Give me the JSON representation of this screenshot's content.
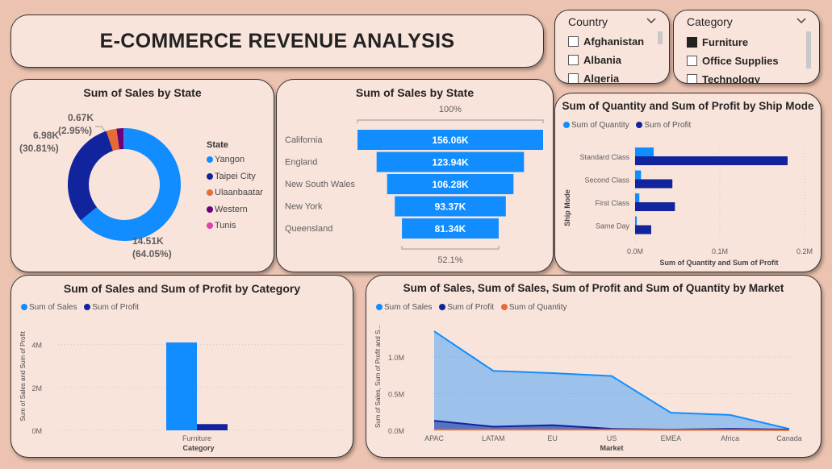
{
  "header": {
    "title": "E-COMMERCE REVENUE ANALYSIS"
  },
  "slicers": {
    "country": {
      "title": "Country",
      "items": [
        {
          "label": "Afghanistan",
          "checked": false
        },
        {
          "label": "Albania",
          "checked": false
        },
        {
          "label": "Algeria",
          "checked": false
        }
      ]
    },
    "category": {
      "title": "Category",
      "items": [
        {
          "label": "Furniture",
          "checked": true
        },
        {
          "label": "Office Supplies",
          "checked": false
        },
        {
          "label": "Technology",
          "checked": false
        }
      ]
    }
  },
  "colors": {
    "blue": "#118dff",
    "navy": "#12239e",
    "orange": "#e66c37",
    "purple": "#6b007b",
    "pink": "#e044a7",
    "card": "#f9e4dc",
    "background": "#ecc3b0"
  },
  "donut": {
    "title": "Sum of Sales by State",
    "legend_title": "State",
    "chart_data": {
      "type": "pie",
      "categories": [
        "Yangon",
        "Taipei City",
        "Ulaanbaatar",
        "Western",
        "Tunis"
      ],
      "values": [
        14.51,
        6.98,
        0.67,
        0.45,
        0.05
      ],
      "unit": "K",
      "colors": [
        "#118dff",
        "#12239e",
        "#e66c37",
        "#6b007b",
        "#e044a7"
      ],
      "data_labels": [
        {
          "value": "14.51K",
          "pct": "(64.05%)"
        },
        {
          "value": "6.98K",
          "pct": "(30.81%)"
        },
        {
          "value": "0.67K",
          "pct": "(2.95%)"
        }
      ]
    }
  },
  "funnel": {
    "title": "Sum of Sales by State",
    "top_pct": "100%",
    "bottom_pct": "52.1%",
    "chart_data": {
      "type": "bar",
      "categories": [
        "California",
        "England",
        "New South Wales",
        "New York",
        "Queensland"
      ],
      "values": [
        156.06,
        123.94,
        106.28,
        93.37,
        81.34
      ],
      "labels": [
        "156.06K",
        "123.94K",
        "106.28K",
        "93.37K",
        "81.34K"
      ]
    }
  },
  "shipmode": {
    "title": "Sum of Quantity and Sum of Profit by Ship Mode",
    "legend": [
      "Sum of Quantity",
      "Sum of Profit"
    ],
    "ylabel": "Ship Mode",
    "xlabel": "Sum of Quantity and Sum of Profit",
    "xticks": [
      "0.0M",
      "0.1M",
      "0.2M"
    ],
    "chart_data": {
      "type": "bar",
      "categories": [
        "Standard Class",
        "Second Class",
        "First Class",
        "Same Day"
      ],
      "series": [
        {
          "name": "Sum of Quantity",
          "values": [
            0.022,
            0.007,
            0.005,
            0.002
          ]
        },
        {
          "name": "Sum of Profit",
          "values": [
            0.18,
            0.044,
            0.047,
            0.019
          ]
        }
      ],
      "xlim": [
        0,
        0.2
      ]
    }
  },
  "category_chart": {
    "title": "Sum of Sales and Sum of Profit by Category",
    "legend": [
      "Sum of Sales",
      "Sum of Profit"
    ],
    "ylabel": "Sum of Sales and Sum of Profit",
    "xlabel": "Category",
    "yticks": [
      "0M",
      "2M",
      "4M"
    ],
    "chart_data": {
      "type": "bar",
      "categories": [
        "Furniture"
      ],
      "series": [
        {
          "name": "Sum of Sales",
          "values": [
            4.1
          ]
        },
        {
          "name": "Sum of Profit",
          "values": [
            0.29
          ]
        }
      ],
      "ylim": [
        0,
        4.7
      ]
    }
  },
  "market": {
    "title": "Sum of Sales, Sum of Sales, Sum of Profit and Sum of Quantity by Market",
    "legend": [
      "Sum of Sales",
      "Sum of Profit",
      "Sum of Quantity"
    ],
    "ylabel": "Sum of Sales, Sum of Profit and S...",
    "xlabel": "Market",
    "yticks": [
      "0.0M",
      "0.5M",
      "1.0M"
    ],
    "chart_data": {
      "type": "area",
      "categories": [
        "APAC",
        "LATAM",
        "EU",
        "US",
        "EMEA",
        "Africa",
        "Canada"
      ],
      "series": [
        {
          "name": "Sum of Sales",
          "values": [
            1.35,
            0.81,
            0.78,
            0.74,
            0.24,
            0.21,
            0.02
          ]
        },
        {
          "name": "Sum of Profit",
          "values": [
            0.13,
            0.05,
            0.07,
            0.02,
            0.01,
            0.02,
            0.01
          ]
        },
        {
          "name": "Sum of Quantity",
          "values": [
            0.01,
            0.01,
            0.01,
            0.01,
            0.005,
            0.005,
            0.001
          ]
        }
      ],
      "ylim": [
        0,
        1.45
      ]
    }
  }
}
